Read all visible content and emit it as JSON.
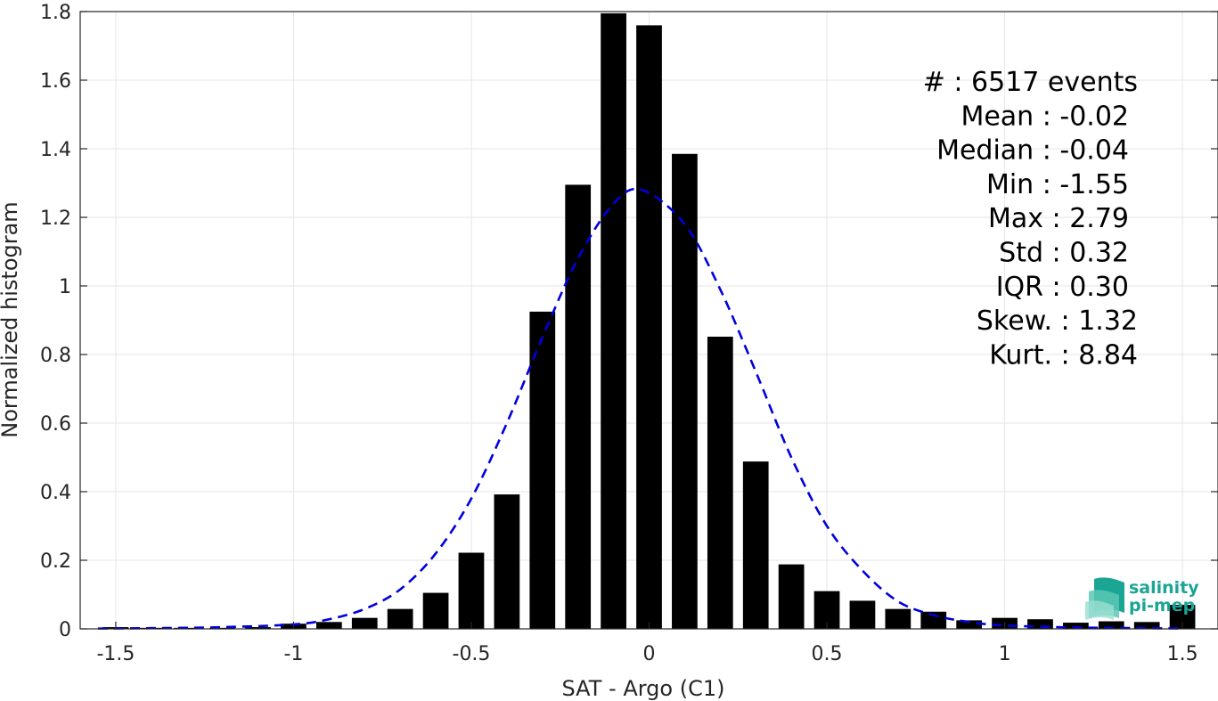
{
  "chart_data": {
    "type": "bar",
    "xlabel": "SAT - Argo (C1)",
    "ylabel": "Normalized histogram",
    "xlim": [
      -1.6,
      1.6
    ],
    "ylim": [
      0,
      1.8
    ],
    "xticks": [
      -1.5,
      -1,
      -0.5,
      0,
      0.5,
      1,
      1.5
    ],
    "xtick_labels": [
      "-1.5",
      "-1",
      "-0.5",
      "0",
      "0.5",
      "1",
      "1.5"
    ],
    "yticks": [
      0,
      0.2,
      0.4,
      0.6,
      0.8,
      1,
      1.2,
      1.4,
      1.6,
      1.8
    ],
    "ytick_labels": [
      "0",
      "0.2",
      "0.4",
      "0.6",
      "0.8",
      "1",
      "1.2",
      "1.4",
      "1.6",
      "1.8"
    ],
    "grid": true,
    "bar_color": "#000000",
    "fit_color": "#0000dd",
    "bars": {
      "centers": [
        -1.5,
        -1.4,
        -1.3,
        -1.2,
        -1.1,
        -1.0,
        -0.9,
        -0.8,
        -0.7,
        -0.6,
        -0.5,
        -0.4,
        -0.3,
        -0.2,
        -0.1,
        0.0,
        0.1,
        0.2,
        0.3,
        0.4,
        0.5,
        0.6,
        0.7,
        0.8,
        0.9,
        1.0,
        1.1,
        1.2,
        1.3,
        1.4,
        1.5
      ],
      "values": [
        0.005,
        0.003,
        0.003,
        0.003,
        0.005,
        0.015,
        0.02,
        0.032,
        0.058,
        0.105,
        0.222,
        0.392,
        0.925,
        1.295,
        1.795,
        1.76,
        1.385,
        0.852,
        0.488,
        0.188,
        0.11,
        0.082,
        0.058,
        0.05,
        0.025,
        0.032,
        0.028,
        0.018,
        0.022,
        0.02,
        0.07
      ]
    },
    "fit_curve": {
      "name": "Gaussian fit",
      "style": "dashed",
      "x": [
        -1.55,
        -1.4,
        -1.2,
        -1.0,
        -0.9,
        -0.8,
        -0.7,
        -0.6,
        -0.5,
        -0.4,
        -0.3,
        -0.2,
        -0.1,
        -0.02,
        0.1,
        0.2,
        0.3,
        0.4,
        0.5,
        0.6,
        0.7,
        0.8,
        0.9,
        1.0,
        1.2,
        1.4,
        1.5
      ],
      "y": [
        0.001,
        0.002,
        0.005,
        0.013,
        0.028,
        0.058,
        0.115,
        0.22,
        0.38,
        0.6,
        0.85,
        1.08,
        1.24,
        1.28,
        1.18,
        0.99,
        0.75,
        0.5,
        0.3,
        0.17,
        0.08,
        0.04,
        0.02,
        0.01,
        0.004,
        0.002,
        0.001
      ]
    },
    "stats": [
      {
        "label": "#  : 6517 events"
      },
      {
        "label": "Mean : -0.02"
      },
      {
        "label": "Median : -0.04"
      },
      {
        "label": "Min : -1.55"
      },
      {
        "label": "Max : 2.79"
      },
      {
        "label": "Std : 0.32"
      },
      {
        "label": "IQR : 0.30"
      },
      {
        "label": "Skew. : 1.32"
      },
      {
        "label": "Kurt. : 8.84"
      }
    ]
  },
  "logo": {
    "line1": "salinity",
    "line2": "pi-mep",
    "color": "#1aa594"
  }
}
